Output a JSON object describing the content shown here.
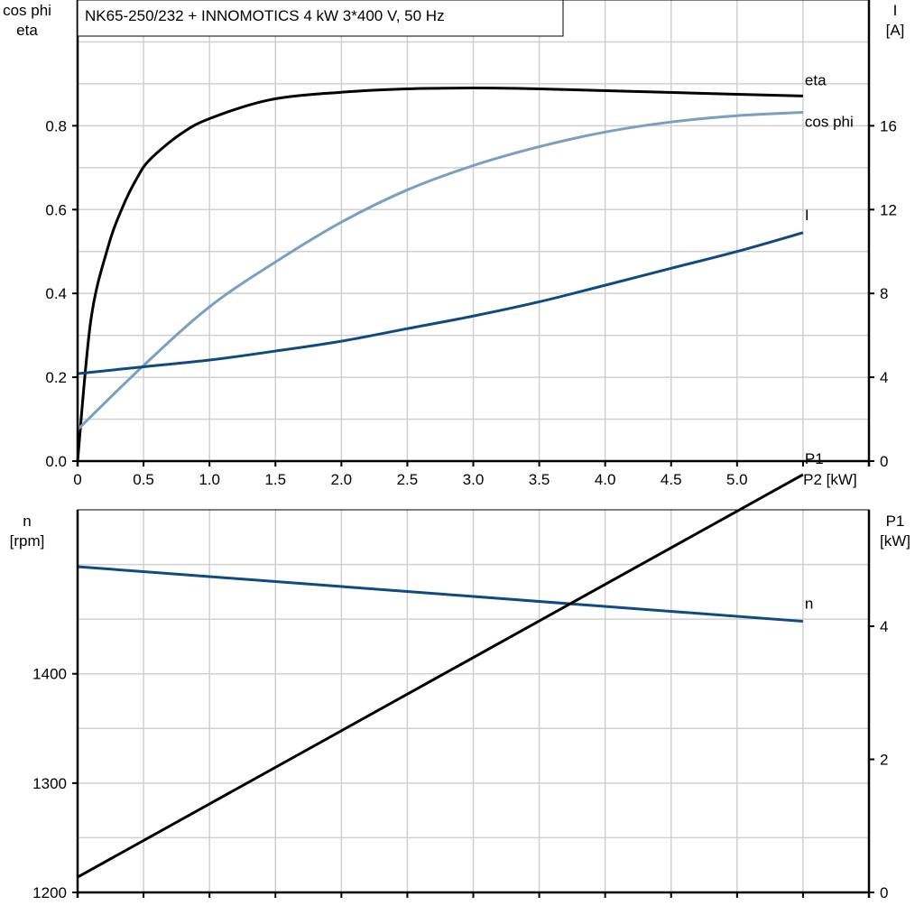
{
  "title": "NK65-250/232 + INNOMOTICS   4 kW   3*400 V, 50 Hz",
  "colors": {
    "eta": "#000000",
    "cosphi": "#7a9fc0",
    "I": "#0f4a80",
    "n": "#0f4a80",
    "P1": "#000000",
    "grid": "#d0d0d0"
  },
  "chart_data": [
    {
      "type": "line",
      "xlabel": "P2 [kW]",
      "xlim": [
        0,
        6
      ],
      "xticks": [
        "0",
        "0.5",
        "1.0",
        "1.5",
        "2.0",
        "2.5",
        "3.0",
        "3.5",
        "4.0",
        "4.5",
        "5.0"
      ],
      "xtick_values": [
        0,
        0.5,
        1,
        1.5,
        2,
        2.5,
        3,
        3.5,
        4,
        4.5,
        5
      ],
      "ylabel_left": [
        "cos phi",
        "eta"
      ],
      "ylim_left": [
        0,
        1.1
      ],
      "yticks_left": [
        "0.0",
        "0.2",
        "0.4",
        "0.6",
        "0.8"
      ],
      "ytick_values_left": [
        0,
        0.2,
        0.4,
        0.6,
        0.8
      ],
      "ylabel_right": [
        "I",
        "[A]"
      ],
      "ylim_right": [
        0,
        22
      ],
      "yticks_right": [
        "0",
        "4",
        "8",
        "12",
        "16"
      ],
      "ytick_values_right": [
        0,
        4,
        8,
        12,
        16
      ],
      "grid": true,
      "series": [
        {
          "name": "eta",
          "axis": "left",
          "color": "#000000",
          "x": [
            0,
            0.1,
            0.23,
            0.34,
            0.45,
            0.55,
            0.78,
            1.0,
            1.46,
            2.0,
            2.49,
            3.0,
            3.5,
            4.2,
            5.0,
            5.5
          ],
          "y": [
            0,
            0.335,
            0.51,
            0.605,
            0.675,
            0.72,
            0.78,
            0.817,
            0.862,
            0.88,
            0.888,
            0.89,
            0.888,
            0.882,
            0.875,
            0.871
          ]
        },
        {
          "name": "cos phi",
          "axis": "left",
          "color": "#7a9fc0",
          "x": [
            0,
            0.5,
            1.0,
            1.5,
            2.0,
            2.5,
            3.0,
            3.5,
            4.0,
            4.5,
            5.0,
            5.5
          ],
          "y": [
            0.075,
            0.228,
            0.368,
            0.475,
            0.57,
            0.647,
            0.705,
            0.75,
            0.785,
            0.809,
            0.824,
            0.832
          ]
        },
        {
          "name": "I",
          "axis": "right",
          "color": "#0f4a80",
          "x": [
            0,
            0.5,
            1.0,
            1.5,
            2.0,
            2.5,
            3.0,
            3.5,
            4.0,
            4.5,
            5.0,
            5.5
          ],
          "y": [
            4.17,
            4.5,
            4.82,
            5.25,
            5.72,
            6.32,
            6.92,
            7.6,
            8.39,
            9.2,
            10.0,
            10.9
          ]
        }
      ]
    },
    {
      "type": "line",
      "xlim": [
        0,
        6
      ],
      "ylabel_left": [
        "n",
        "[rpm]"
      ],
      "ylim_left": [
        1200,
        1550
      ],
      "yticks_left": [
        "1200",
        "1300",
        "1400"
      ],
      "ytick_values_left": [
        1200,
        1300,
        1400
      ],
      "ylabel_right": [
        "P1",
        "[kW]"
      ],
      "ylim_right": [
        0,
        5.75
      ],
      "yticks_right": [
        "0",
        "2",
        "4"
      ],
      "ytick_values_right": [
        0,
        2,
        4
      ],
      "grid": true,
      "series": [
        {
          "name": "n",
          "axis": "left",
          "color": "#0f4a80",
          "x": [
            0,
            5.5
          ],
          "y": [
            1498,
            1448
          ]
        },
        {
          "name": "P1",
          "axis": "right",
          "color": "#000000",
          "x": [
            0,
            5.5
          ],
          "y": [
            0.23,
            6.28
          ]
        }
      ]
    }
  ]
}
